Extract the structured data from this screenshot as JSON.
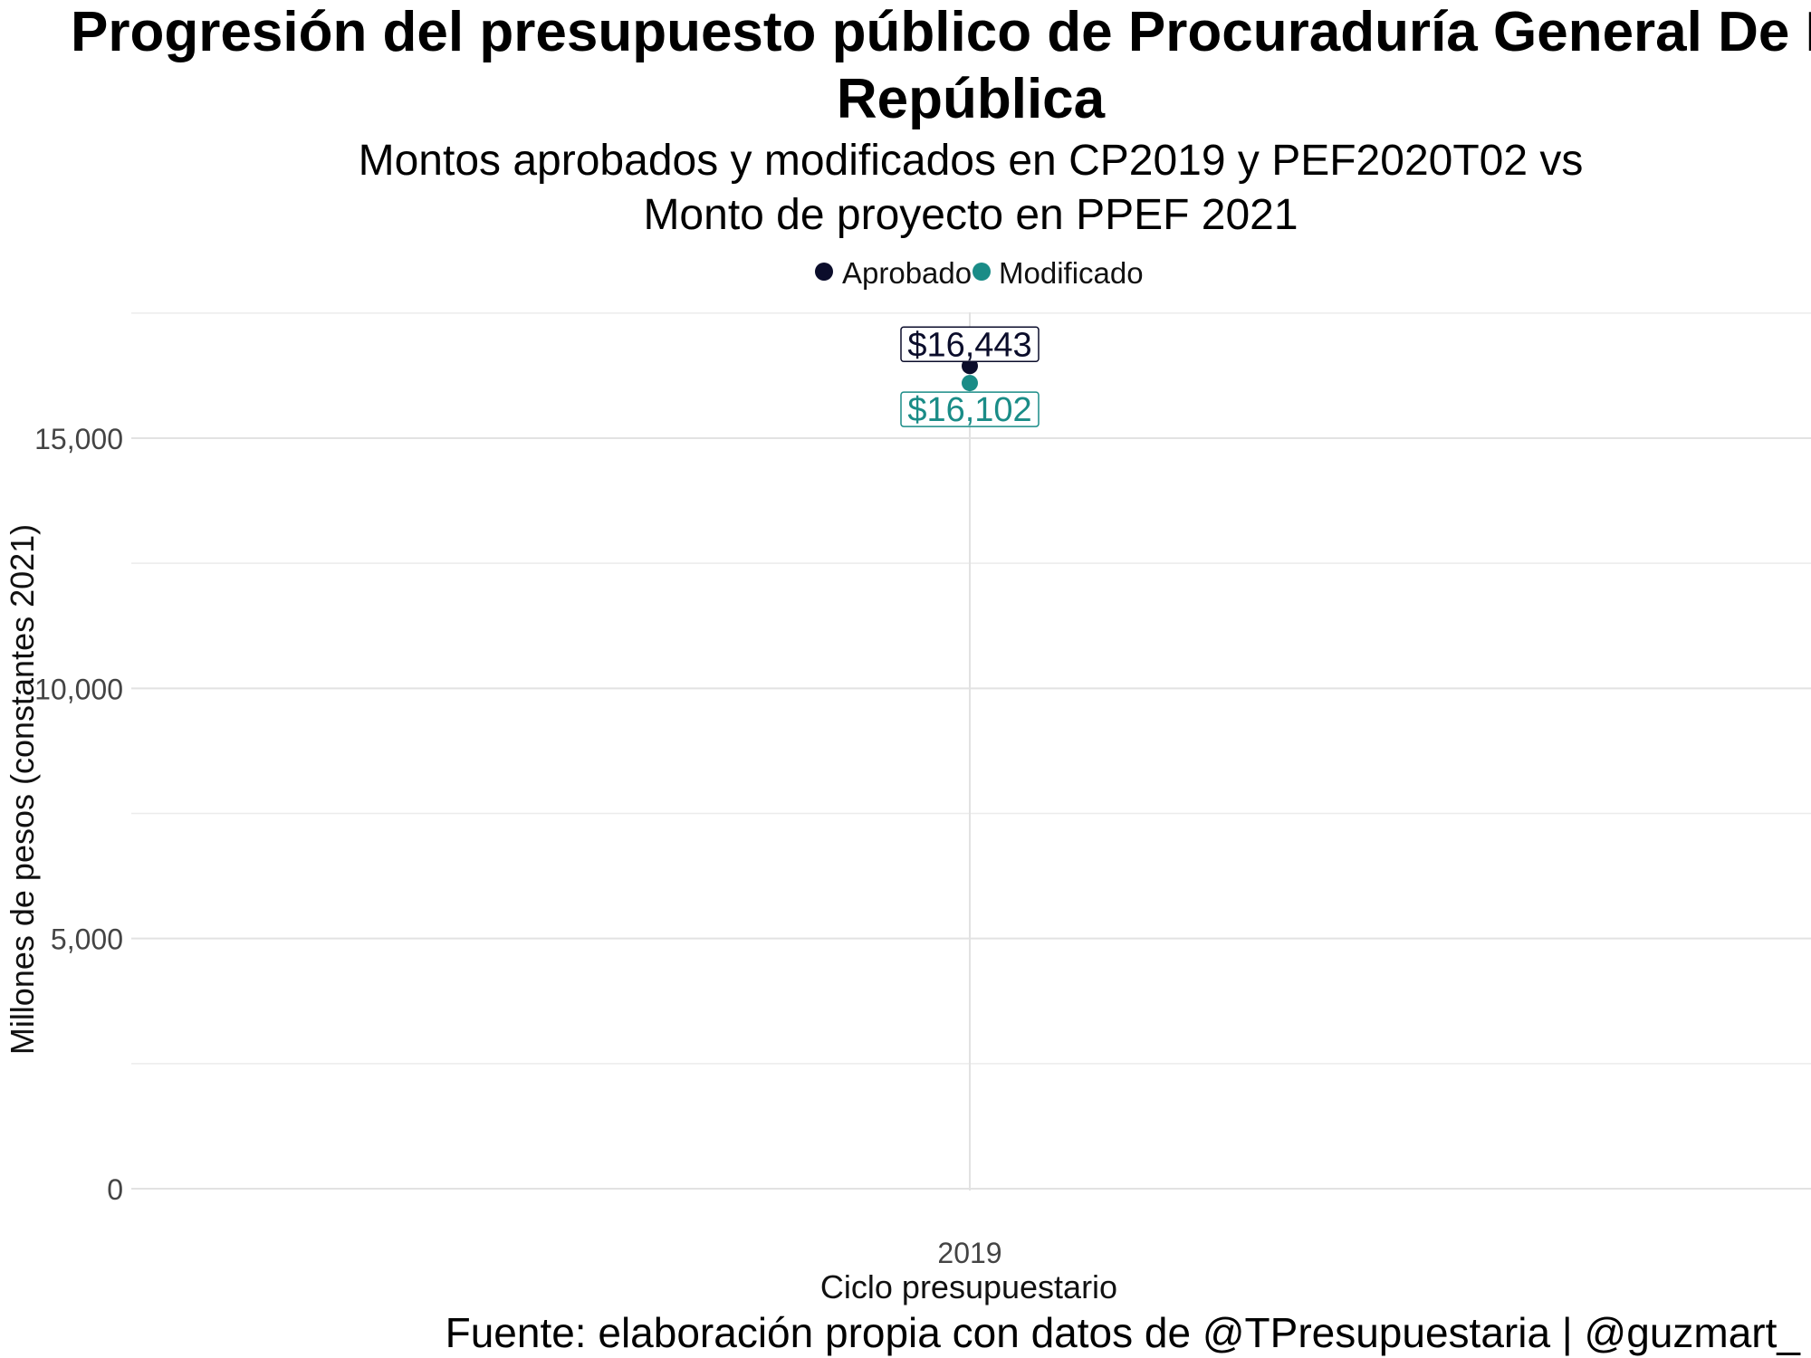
{
  "chart_data": {
    "type": "scatter",
    "title": "Progresión del presupuesto público de Procuraduría General De La República",
    "title_lines": [
      "Progresión del presupuesto público de Procuraduría General De La",
      "República"
    ],
    "subtitle_lines": [
      "Montos aprobados y modificados en CP2019 y PEF2020T02 vs",
      "Monto de proyecto en PPEF 2021"
    ],
    "xlabel": "Ciclo presupuestario",
    "ylabel": "Millones de pesos (constantes 2021)",
    "caption": "Fuente: elaboración propia con datos de @TPresupuestaria | @guzmart_",
    "x_categories": [
      "2019"
    ],
    "ylim": [
      0,
      17500
    ],
    "y_ticks": [
      0,
      5000,
      10000,
      15000
    ],
    "y_tick_labels": [
      "0",
      "5,000",
      "10,000",
      "15,000"
    ],
    "grid": true,
    "legend_position": "top",
    "series": [
      {
        "name": "Aprobado",
        "color": "#0b0d2b",
        "points": [
          {
            "x": "2019",
            "y": 16443,
            "label": "$16,443"
          }
        ]
      },
      {
        "name": "Modificado",
        "color": "#1a8c87",
        "points": [
          {
            "x": "2019",
            "y": 16102,
            "label": "$16,102"
          }
        ]
      }
    ]
  }
}
